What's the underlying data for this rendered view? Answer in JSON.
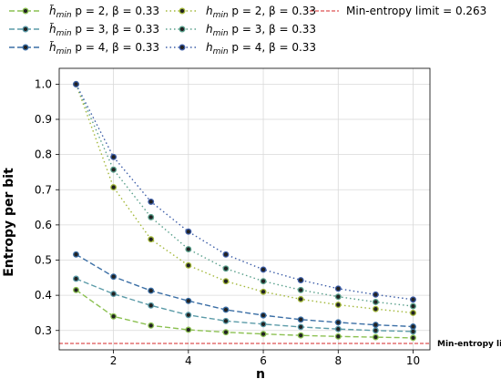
{
  "chart_data": {
    "type": "line",
    "xlabel": "n",
    "ylabel": "Entropy per bit",
    "xlim": [
      0.55,
      10.45
    ],
    "ylim": [
      0.245,
      1.045
    ],
    "xticks": [
      2,
      4,
      6,
      8,
      10
    ],
    "yticks": [
      0.3,
      0.4,
      0.5,
      0.6,
      0.7,
      0.8,
      0.9,
      1.0
    ],
    "grid": true,
    "legend_position": "top",
    "x": [
      1,
      2,
      3,
      4,
      5,
      6,
      7,
      8,
      9,
      10
    ],
    "series": [
      {
        "name": "h̃min p = 2, β = 0.33",
        "symbol": "h̃",
        "sub": "min",
        "rest": " p = 2, β = 0.33",
        "style": "dashed",
        "color": "#8cc152",
        "values": [
          0.415,
          0.34,
          0.314,
          0.302,
          0.295,
          0.29,
          0.286,
          0.283,
          0.281,
          0.279
        ]
      },
      {
        "name": "h̃min p = 3, β = 0.33",
        "symbol": "h̃",
        "sub": "min",
        "rest": " p = 3, β = 0.33",
        "style": "dashed",
        "color": "#5b9ba8",
        "values": [
          0.447,
          0.404,
          0.371,
          0.344,
          0.327,
          0.318,
          0.31,
          0.304,
          0.3,
          0.297
        ]
      },
      {
        "name": "h̃min p = 4, β = 0.33",
        "symbol": "h̃",
        "sub": "min",
        "rest": " p = 4, β = 0.33",
        "style": "dashed",
        "color": "#3a6ea5",
        "values": [
          0.516,
          0.453,
          0.413,
          0.384,
          0.359,
          0.343,
          0.331,
          0.323,
          0.316,
          0.311
        ]
      },
      {
        "name": "hmin p = 2, β = 0.33",
        "symbol": "h",
        "sub": "min",
        "rest": " p = 2, β = 0.33",
        "style": "dotted",
        "color": "#a3b83a",
        "values": [
          1.0,
          0.707,
          0.559,
          0.485,
          0.44,
          0.41,
          0.389,
          0.373,
          0.361,
          0.35
        ]
      },
      {
        "name": "hmin p = 3, β = 0.33",
        "symbol": "h",
        "sub": "min",
        "rest": " p = 3, β = 0.33",
        "style": "dotted",
        "color": "#5aa08c",
        "values": [
          1.0,
          0.757,
          0.622,
          0.531,
          0.476,
          0.44,
          0.415,
          0.396,
          0.381,
          0.369
        ]
      },
      {
        "name": "hmin p = 4, β = 0.33",
        "symbol": "h",
        "sub": "min",
        "rest": " p = 4, β = 0.33",
        "style": "dotted",
        "color": "#3d5ea8",
        "values": [
          1.0,
          0.793,
          0.666,
          0.581,
          0.516,
          0.473,
          0.443,
          0.419,
          0.402,
          0.388
        ]
      }
    ],
    "reference_line": {
      "label": "Min-entropy limit = 0.263",
      "annotation": "Min-entropy limit",
      "value": 0.263,
      "color": "#d62728"
    }
  },
  "colors": {
    "grid": "#d9d9d9",
    "marker_fill": "#222222"
  }
}
